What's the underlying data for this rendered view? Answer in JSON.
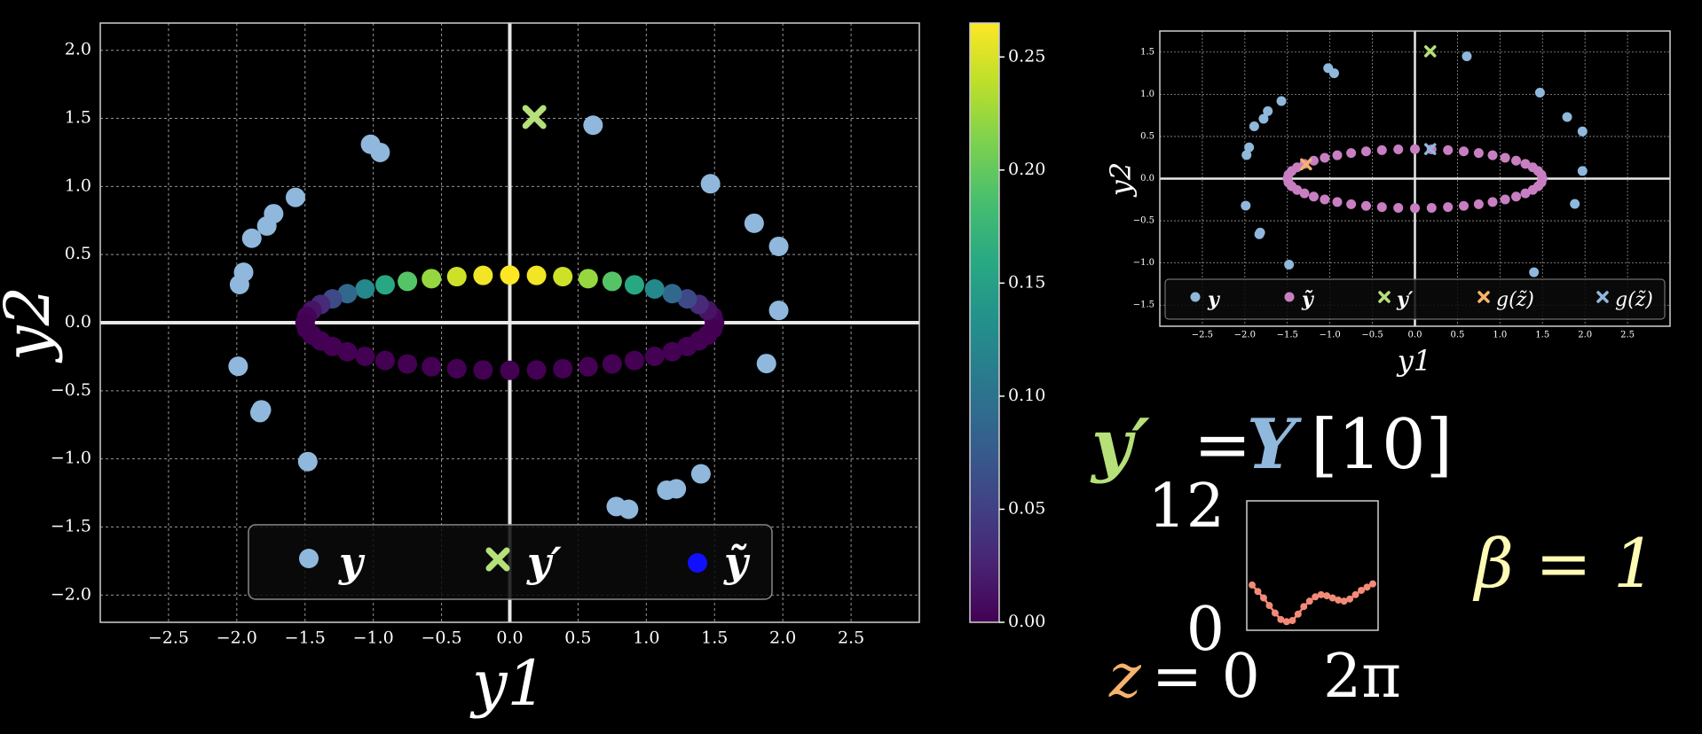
{
  "colors": {
    "background": "#000000",
    "y": "#8fb8dc",
    "y_prime": "#b5e07a",
    "y_tilde_legend": "#1010ff",
    "ellipse_small": "#c87fc2",
    "g_orange": "#f7b26d",
    "g_blue": "#8fb8dc",
    "wave": "#f38a78",
    "beta": "#fffbb5",
    "z": "#f7b26d",
    "Y": "#8fb8dc"
  },
  "chart_data": [
    {
      "type": "scatter",
      "xlabel": "y1",
      "ylabel": "y2",
      "xlim": [
        -3.0,
        3.0
      ],
      "ylim": [
        -2.2,
        2.2
      ],
      "x_ticks": [
        -2.5,
        -2.0,
        -1.5,
        -1.0,
        -0.5,
        0.0,
        0.5,
        1.0,
        1.5,
        2.0,
        2.5
      ],
      "x_tick_labels": [
        "−2.5",
        "−2.0",
        "−1.5",
        "−1.0",
        "−0.5",
        "0.0",
        "0.5",
        "1.0",
        "1.5",
        "2.0",
        "2.5"
      ],
      "y_ticks": [
        -2.0,
        -1.5,
        -1.0,
        -0.5,
        0.0,
        0.5,
        1.0,
        1.5,
        2.0
      ],
      "y_tick_labels": [
        "−2.0",
        "−1.5",
        "−1.0",
        "−0.5",
        "0.0",
        "0.5",
        "1.0",
        "1.5",
        "2.0"
      ],
      "grid": true,
      "legend_placement": "bottom-center",
      "legend": [
        "y",
        "y′",
        "ỹ"
      ],
      "series": [
        {
          "name": "y",
          "points": [
            [
              -1.99,
              -0.32
            ],
            [
              -1.98,
              0.28
            ],
            [
              -1.95,
              0.37
            ],
            [
              -1.89,
              0.62
            ],
            [
              -1.78,
              0.71
            ],
            [
              -1.73,
              0.8
            ],
            [
              -1.57,
              0.92
            ],
            [
              -1.82,
              -0.64
            ],
            [
              -1.83,
              -0.66
            ],
            [
              -1.48,
              -1.02
            ],
            [
              -1.02,
              1.31
            ],
            [
              -0.95,
              1.25
            ],
            [
              0.61,
              1.45
            ],
            [
              1.47,
              1.02
            ],
            [
              1.79,
              0.73
            ],
            [
              1.97,
              0.56
            ],
            [
              1.97,
              0.09
            ],
            [
              1.88,
              -0.3
            ],
            [
              0.78,
              -1.35
            ],
            [
              0.87,
              -1.37
            ],
            [
              1.15,
              -1.23
            ],
            [
              1.22,
              -1.22
            ],
            [
              1.4,
              -1.11
            ]
          ]
        },
        {
          "name": "y′",
          "points": [
            [
              0.18,
              1.51
            ]
          ]
        },
        {
          "name": "ỹ",
          "ellipse": {
            "a": 1.5,
            "b": 0.35,
            "n": 48
          },
          "colorbar": {
            "min": 0.0,
            "max": 0.265,
            "palette": "viridis"
          }
        }
      ],
      "colorbar_ticks": [
        0.0,
        0.05,
        0.1,
        0.15,
        0.2,
        0.25
      ],
      "colorbar_tick_labels": [
        "0.00",
        "0.05",
        "0.10",
        "0.15",
        "0.20",
        "0.25"
      ]
    },
    {
      "type": "scatter",
      "xlabel": "y1",
      "ylabel": "y2",
      "xlim": [
        -3.0,
        3.0
      ],
      "ylim": [
        -1.75,
        1.75
      ],
      "x_ticks": [
        -2.5,
        -2.0,
        -1.5,
        -1.0,
        -0.5,
        0.0,
        0.5,
        1.0,
        1.5,
        2.0,
        2.5
      ],
      "x_tick_labels": [
        "−2.5",
        "−2.0",
        "−1.5",
        "−1.0",
        "−0.5",
        "0.0",
        "0.5",
        "1.0",
        "1.5",
        "2.0",
        "2.5"
      ],
      "y_ticks": [
        -1.5,
        -1.0,
        -0.5,
        0.0,
        0.5,
        1.0,
        1.5
      ],
      "y_tick_labels": [
        "−1.5",
        "−1.0",
        "−0.5",
        "0.0",
        "0.5",
        "1.0",
        "1.5"
      ],
      "grid": true,
      "legend_placement": "bottom",
      "legend": [
        "y",
        "ỹ",
        "y′",
        "g(z̃)",
        "g(z̃)"
      ],
      "series": [
        {
          "name": "y",
          "points": [
            [
              -1.99,
              -0.32
            ],
            [
              -1.98,
              0.28
            ],
            [
              -1.95,
              0.37
            ],
            [
              -1.89,
              0.62
            ],
            [
              -1.78,
              0.71
            ],
            [
              -1.73,
              0.8
            ],
            [
              -1.57,
              0.92
            ],
            [
              -1.82,
              -0.64
            ],
            [
              -1.83,
              -0.66
            ],
            [
              -1.48,
              -1.02
            ],
            [
              -1.02,
              1.31
            ],
            [
              -0.95,
              1.25
            ],
            [
              0.61,
              1.45
            ],
            [
              1.47,
              1.02
            ],
            [
              1.79,
              0.73
            ],
            [
              1.97,
              0.56
            ],
            [
              1.97,
              0.09
            ],
            [
              1.88,
              -0.3
            ],
            [
              1.4,
              -1.11
            ]
          ]
        },
        {
          "name": "ỹ",
          "ellipse": {
            "a": 1.5,
            "b": 0.35,
            "n": 48
          }
        },
        {
          "name": "y′",
          "points": [
            [
              0.18,
              1.51
            ]
          ]
        },
        {
          "name": "g(z̃) orange",
          "points": [
            [
              -1.28,
              0.17
            ]
          ]
        },
        {
          "name": "g(z̃) blue",
          "points": [
            [
              0.18,
              0.35
            ]
          ]
        }
      ]
    },
    {
      "type": "line",
      "x_range_labels": [
        "0",
        "2π"
      ],
      "y_range_labels": [
        "0",
        "12"
      ],
      "ylim": [
        0,
        12
      ],
      "values": [
        4.2,
        3.6,
        3.0,
        2.3,
        1.6,
        1.0,
        0.8,
        0.9,
        1.5,
        2.2,
        2.7,
        3.1,
        3.3,
        3.2,
        3.0,
        2.8,
        2.7,
        2.9,
        3.3,
        3.7,
        4.0,
        4.3
      ]
    }
  ],
  "equations": {
    "y_prime_lhs": "y′",
    "equals": "=",
    "Y": "Y",
    "index": "[10]",
    "beta": "β = 1",
    "z_var": "z",
    "z_rest": "= 0"
  }
}
